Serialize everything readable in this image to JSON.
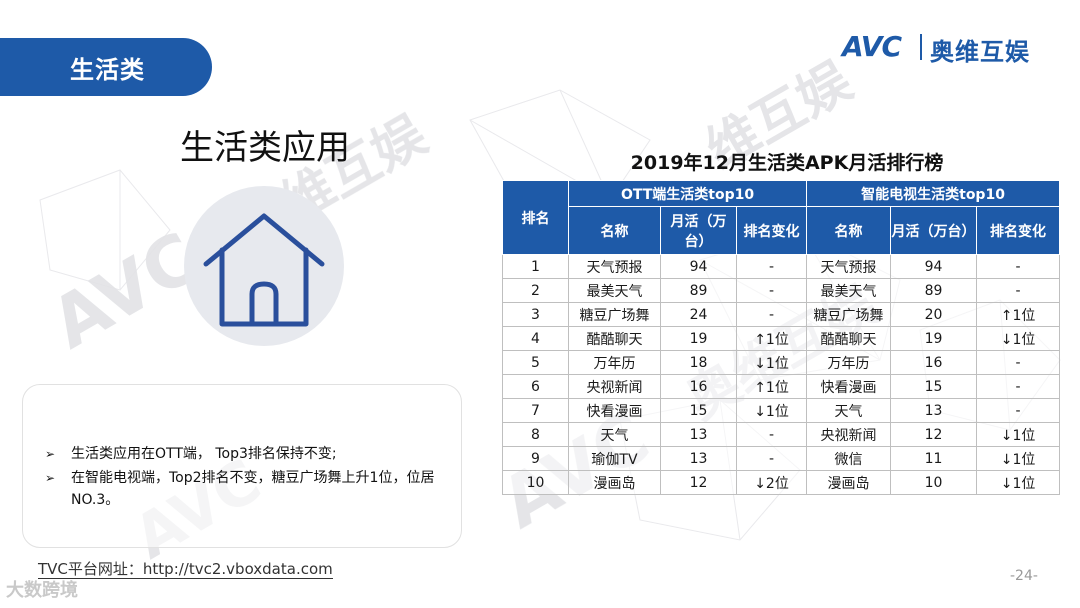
{
  "header": {
    "category_tab": "生活类",
    "logo_latin": "AVC",
    "logo_cn": "奥维互娱"
  },
  "section": {
    "title": "生活类应用",
    "icon": "house-icon"
  },
  "summary": {
    "bullets": [
      "生活类应用在OTT端， Top3排名保持不变;",
      "在智能电视端，Top2排名不变，糖豆广场舞上升1位，位居NO.3。"
    ]
  },
  "table": {
    "title": "2019年12月生活类APK月活排行榜",
    "rank_header": "排名",
    "group_ott": "OTT端生活类top10",
    "group_tv": "智能电视生活类top10",
    "col_name": "名称",
    "col_mau": "月活（万台）",
    "col_change": "排名变化",
    "rows": [
      {
        "rank": "1",
        "ott_name": "天气预报",
        "ott_mau": "94",
        "ott_change": "-",
        "ott_dir": "flat",
        "tv_name": "天气预报",
        "tv_mau": "94",
        "tv_change": "-",
        "tv_dir": "flat"
      },
      {
        "rank": "2",
        "ott_name": "最美天气",
        "ott_mau": "89",
        "ott_change": "-",
        "ott_dir": "flat",
        "tv_name": "最美天气",
        "tv_mau": "89",
        "tv_change": "-",
        "tv_dir": "flat"
      },
      {
        "rank": "3",
        "ott_name": "糖豆广场舞",
        "ott_mau": "24",
        "ott_change": "-",
        "ott_dir": "flat",
        "tv_name": "糖豆广场舞",
        "tv_mau": "20",
        "tv_change": "↑1位",
        "tv_dir": "up"
      },
      {
        "rank": "4",
        "ott_name": "酷酷聊天",
        "ott_mau": "19",
        "ott_change": "↑1位",
        "ott_dir": "up",
        "tv_name": "酷酷聊天",
        "tv_mau": "19",
        "tv_change": "↓1位",
        "tv_dir": "down"
      },
      {
        "rank": "5",
        "ott_name": "万年历",
        "ott_mau": "18",
        "ott_change": "↓1位",
        "ott_dir": "down",
        "tv_name": "万年历",
        "tv_mau": "16",
        "tv_change": "-",
        "tv_dir": "flat"
      },
      {
        "rank": "6",
        "ott_name": "央视新闻",
        "ott_mau": "16",
        "ott_change": "↑1位",
        "ott_dir": "up",
        "tv_name": "快看漫画",
        "tv_mau": "15",
        "tv_change": "-",
        "tv_dir": "flat"
      },
      {
        "rank": "7",
        "ott_name": "快看漫画",
        "ott_mau": "15",
        "ott_change": "↓1位",
        "ott_dir": "down",
        "tv_name": "天气",
        "tv_mau": "13",
        "tv_change": "-",
        "tv_dir": "flat"
      },
      {
        "rank": "8",
        "ott_name": "天气",
        "ott_mau": "13",
        "ott_change": "-",
        "ott_dir": "flat",
        "tv_name": "央视新闻",
        "tv_mau": "12",
        "tv_change": "↓1位",
        "tv_dir": "down"
      },
      {
        "rank": "9",
        "ott_name": "瑜伽TV",
        "ott_mau": "13",
        "ott_change": "-",
        "ott_dir": "flat",
        "tv_name": "微信",
        "tv_mau": "11",
        "tv_change": "↓1位",
        "tv_dir": "down"
      },
      {
        "rank": "10",
        "ott_name": "漫画岛",
        "ott_mau": "12",
        "ott_change": "↓2位",
        "ott_dir": "down",
        "tv_name": "漫画岛",
        "tv_mau": "10",
        "tv_change": "↓1位",
        "tv_dir": "down"
      }
    ]
  },
  "footer": {
    "url_text": "TVC平台网址：http://tvc2.vboxdata.com",
    "page_number": "-24-",
    "wechat_mark": "大数跨境"
  },
  "colors": {
    "brand_blue": "#1e5aa8",
    "up_red": "#d31b1b",
    "down_green": "#1f9a4a"
  }
}
